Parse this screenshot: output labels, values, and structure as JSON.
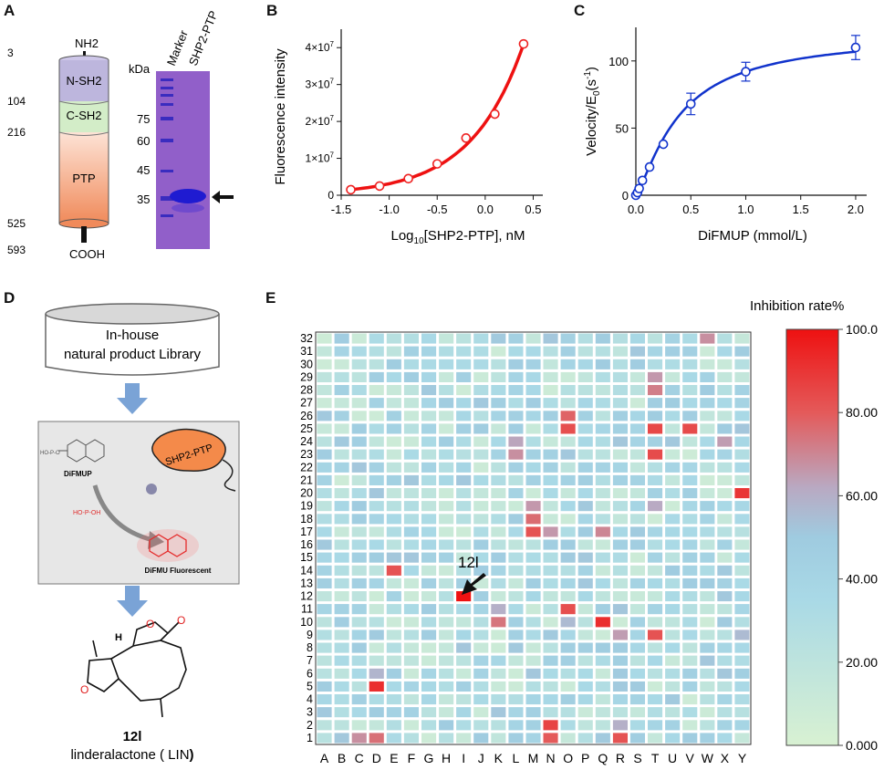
{
  "panels": {
    "a": "A",
    "b": "B",
    "c": "C",
    "d": "D",
    "e": "E"
  },
  "domain_diagram": {
    "nh2": "NH2",
    "cooh": "COOH",
    "domains": [
      "N-SH2",
      "C-SH2",
      "PTP"
    ],
    "positions": [
      "3",
      "104",
      "216",
      "525",
      "593"
    ]
  },
  "gel": {
    "kda": "kDa",
    "lanes": [
      "Marker",
      "SHP2-PTP"
    ],
    "markers": [
      "75",
      "60",
      "45",
      "35"
    ]
  },
  "chart_data": [
    {
      "type": "scatter",
      "panel": "B",
      "xlabel_prefix": "Log",
      "xlabel_sub": "10",
      "xlabel_suffix": "[SHP2-PTP], nM",
      "ylabel": "Fluorescence intensity",
      "xlim": [
        -1.5,
        0.6
      ],
      "ylim": [
        0,
        45000000
      ],
      "xticks": [
        "-1.5",
        "-1.0",
        "-0.5",
        "0.0",
        "0.5"
      ],
      "xtick_values": [
        -1.5,
        -1.0,
        -0.5,
        0.0,
        0.5
      ],
      "yticks": [
        {
          "value": 0,
          "base": "0",
          "exp": ""
        },
        {
          "value": 10000000,
          "base": "1×10",
          "exp": "7"
        },
        {
          "value": 20000000,
          "base": "2×10",
          "exp": "7"
        },
        {
          "value": 30000000,
          "base": "3×10",
          "exp": "7"
        },
        {
          "value": 40000000,
          "base": "4×10",
          "exp": "7"
        }
      ],
      "x": [
        -1.4,
        -1.1,
        -0.8,
        -0.5,
        -0.2,
        0.1,
        0.4
      ],
      "y": [
        1500000,
        2500000,
        4500000,
        8500000,
        15500000,
        22000000,
        41000000
      ],
      "curve_color": "#ee1111",
      "marker_color": "#ee2222"
    },
    {
      "type": "scatter",
      "panel": "C",
      "xlabel": "DiFMUP (mmol/L)",
      "ylabel_prefix": "Velocity/E",
      "ylabel_sub": "0",
      "ylabel_mid": "(s",
      "ylabel_sup": "-1",
      "ylabel_end": ")",
      "xlim": [
        0,
        2.1
      ],
      "ylim": [
        0,
        125
      ],
      "xticks": [
        "0.0",
        "0.5",
        "1.0",
        "1.5",
        "2.0"
      ],
      "xtick_values": [
        0,
        0.5,
        1.0,
        1.5,
        2.0
      ],
      "yticks": [
        "0",
        "50",
        "100"
      ],
      "ytick_values": [
        0,
        50,
        100
      ],
      "x": [
        0.0,
        0.015,
        0.03,
        0.06,
        0.125,
        0.25,
        0.5,
        1.0,
        2.0
      ],
      "y": [
        0,
        2,
        5,
        11,
        21,
        38,
        68,
        92,
        110
      ],
      "err": [
        0,
        0,
        0,
        0,
        0,
        0,
        8,
        7,
        9
      ],
      "vmax": 120,
      "km": 0.4,
      "hill": 1.3,
      "curve_color": "#1133cc",
      "marker_color": "#1133cc"
    },
    {
      "type": "heatmap",
      "panel": "E",
      "columns": [
        "A",
        "B",
        "C",
        "D",
        "E",
        "F",
        "G",
        "H",
        "I",
        "J",
        "K",
        "L",
        "M",
        "N",
        "O",
        "P",
        "Q",
        "R",
        "S",
        "T",
        "U",
        "V",
        "W",
        "X",
        "Y"
      ],
      "rows": [
        "32",
        "31",
        "30",
        "29",
        "28",
        "27",
        "26",
        "25",
        "24",
        "23",
        "22",
        "21",
        "20",
        "19",
        "18",
        "17",
        "16",
        "15",
        "14",
        "13",
        "12",
        "11",
        "10",
        "9",
        "8",
        "7",
        "6",
        "5",
        "4",
        "3",
        "2",
        "1"
      ],
      "legend_title": "Inhibition rate%",
      "legend_ticks": [
        "100.0",
        "80.00",
        "60.00",
        "40.00",
        "20.00",
        "0.000"
      ],
      "legend_values": [
        100,
        80,
        60,
        40,
        20,
        0
      ],
      "annotation": "12l",
      "highlights": [
        {
          "col": "I",
          "row": "12",
          "value": 100
        },
        {
          "col": "E",
          "row": "14",
          "value": 82
        },
        {
          "col": "Q",
          "row": "10",
          "value": 92
        },
        {
          "col": "Y",
          "row": "20",
          "value": 90
        },
        {
          "col": "W",
          "row": "32",
          "value": 68
        },
        {
          "col": "O",
          "row": "26",
          "value": 78
        },
        {
          "col": "O",
          "row": "25",
          "value": 83
        },
        {
          "col": "T",
          "row": "25",
          "value": 85
        },
        {
          "col": "V",
          "row": "25",
          "value": 84
        },
        {
          "col": "T",
          "row": "23",
          "value": 84
        },
        {
          "col": "T",
          "row": "28",
          "value": 72
        },
        {
          "col": "T",
          "row": "29",
          "value": 66
        },
        {
          "col": "L",
          "row": "24",
          "value": 63
        },
        {
          "col": "L",
          "row": "23",
          "value": 68
        },
        {
          "col": "M",
          "row": "19",
          "value": 66
        },
        {
          "col": "M",
          "row": "18",
          "value": 76
        },
        {
          "col": "M",
          "row": "17",
          "value": 82
        },
        {
          "col": "N",
          "row": "17",
          "value": 66
        },
        {
          "col": "Q",
          "row": "17",
          "value": 70
        },
        {
          "col": "K",
          "row": "11",
          "value": 60
        },
        {
          "col": "K",
          "row": "10",
          "value": 74
        },
        {
          "col": "O",
          "row": "11",
          "value": 83
        },
        {
          "col": "O",
          "row": "10",
          "value": 56
        },
        {
          "col": "R",
          "row": "9",
          "value": 65
        },
        {
          "col": "T",
          "row": "9",
          "value": 82
        },
        {
          "col": "D",
          "row": "6",
          "value": 58
        },
        {
          "col": "D",
          "row": "5",
          "value": 92
        },
        {
          "col": "N",
          "row": "2",
          "value": 86
        },
        {
          "col": "N",
          "row": "1",
          "value": 80
        },
        {
          "col": "R",
          "row": "2",
          "value": 60
        },
        {
          "col": "R",
          "row": "1",
          "value": 82
        },
        {
          "col": "C",
          "row": "1",
          "value": 68
        },
        {
          "col": "D",
          "row": "1",
          "value": 75
        },
        {
          "col": "X",
          "row": "24",
          "value": 65
        },
        {
          "col": "T",
          "row": "19",
          "value": 62
        },
        {
          "col": "Y",
          "row": "9",
          "value": 56
        },
        {
          "col": "Y",
          "row": "25",
          "value": 52
        },
        {
          "col": "I",
          "row": "8",
          "value": 52
        },
        {
          "col": "R",
          "row": "11",
          "value": 52
        },
        {
          "col": "X",
          "row": "25",
          "value": 50
        },
        {
          "col": "H",
          "row": "24",
          "value": 48
        },
        {
          "col": "C",
          "row": "24",
          "value": 46
        }
      ]
    }
  ],
  "workflow": {
    "library_line1": "In-house",
    "library_line2": "natural product Library",
    "enzyme": "SHP2-PTP",
    "substrate": "DiFMUP",
    "product": "DiFMU Fluorescent",
    "compound_id": "12l",
    "compound_name_a": "linderalactone ( LIN",
    "compound_name_b": ")",
    "arrow_color": "#7aa3d6"
  },
  "colors": {
    "nsh2": "#bdb6dd",
    "csh2": "#d3edc8",
    "ptp_top": "#fbd6c6",
    "ptp_bottom": "#f29468",
    "gel_bg": "#9a66cc",
    "band": "#1f1bd1",
    "heat_low": "#d6f0d0",
    "heat_mid": "#9ad0e4",
    "heat_high": "#ee1111"
  }
}
